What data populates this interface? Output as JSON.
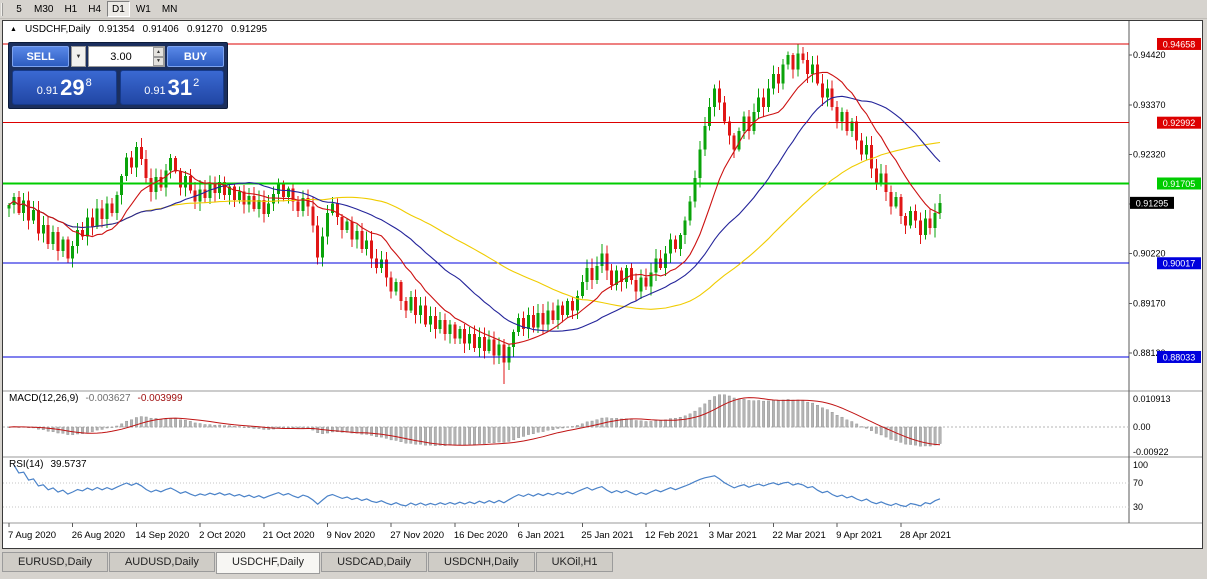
{
  "toolbar": {
    "periods": [
      "5",
      "M30",
      "H1",
      "H4",
      "D1",
      "W1",
      "MN"
    ],
    "active": "D1"
  },
  "icons": {
    "collapse": "▲",
    "dropdown": "▼",
    "spin_up": "▲",
    "spin_down": "▼"
  },
  "chart": {
    "symbol_title": "USDCHF,Daily",
    "ohlc": {
      "open": "0.91354",
      "high": "0.91406",
      "low": "0.91270",
      "close": "0.91295"
    },
    "trade_panel": {
      "sell_label": "SELL",
      "buy_label": "BUY",
      "volume": "3.00",
      "bid": {
        "prefix": "0.91",
        "big": "29",
        "sup": "8"
      },
      "ask": {
        "prefix": "0.91",
        "big": "31",
        "sup": "2"
      }
    },
    "macd_title": "MACD(12,26,9)",
    "macd_value_main": "-0.003627",
    "macd_value_signal": "-0.003999",
    "rsi_title": "RSI(14)",
    "rsi_value": "39.5737"
  },
  "chart_data": {
    "type": "candlestick",
    "symbol": "USDCHF",
    "timeframe": "Daily",
    "colors": {
      "up": "#0aa30a",
      "down": "#e01616"
    },
    "price_range": {
      "top": 0.94848,
      "bottom": 0.87313
    },
    "axis_ticks": [
      0.9442,
      0.9337,
      0.9232,
      0.9127,
      0.9022,
      0.8917,
      0.8812
    ],
    "current_price": 0.91295,
    "horizontal_lines": [
      {
        "price": 0.94658,
        "label": "0.94658",
        "color": "#dd0000",
        "width": 1
      },
      {
        "price": 0.92992,
        "label": "0.92992",
        "color": "#dd0000",
        "width": 1
      },
      {
        "price": 0.91705,
        "label": "0.91705",
        "color": "#00cc00",
        "width": 2
      },
      {
        "price": 0.90017,
        "label": "0.90017",
        "color": "#0000dd",
        "width": 1
      },
      {
        "price": 0.88033,
        "label": "0.88033",
        "color": "#0000dd",
        "width": 1
      }
    ],
    "moving_averages": [
      {
        "period": 55,
        "color": "#f0cc00"
      },
      {
        "period": 28,
        "color": "#24249a"
      },
      {
        "period": 12,
        "color": "#cc1111"
      }
    ],
    "x_labels": [
      "7 Aug 2020",
      "26 Aug 2020",
      "14 Sep 2020",
      "2 Oct 2020",
      "21 Oct 2020",
      "9 Nov 2020",
      "27 Nov 2020",
      "16 Dec 2020",
      "6 Jan 2021",
      "25 Jan 2021",
      "12 Feb 2021",
      "3 Mar 2021",
      "22 Mar 2021",
      "9 Apr 2021",
      "28 Apr 2021"
    ],
    "candles_per_label": 13,
    "first_open": 0.9118,
    "closes": [
      0.9125,
      0.9142,
      0.9108,
      0.9135,
      0.9092,
      0.9114,
      0.9065,
      0.9083,
      0.9042,
      0.9068,
      0.9028,
      0.9052,
      0.9012,
      0.9038,
      0.9072,
      0.9058,
      0.9098,
      0.9078,
      0.9118,
      0.9095,
      0.9128,
      0.9108,
      0.9146,
      0.9186,
      0.9226,
      0.9204,
      0.9248,
      0.9222,
      0.9182,
      0.9152,
      0.9184,
      0.9162,
      0.9198,
      0.9224,
      0.9196,
      0.9162,
      0.9186,
      0.9156,
      0.9132,
      0.9158,
      0.914,
      0.9168,
      0.915,
      0.9174,
      0.9146,
      0.9164,
      0.9136,
      0.9154,
      0.9126,
      0.9144,
      0.9116,
      0.9136,
      0.9106,
      0.9128,
      0.9148,
      0.9168,
      0.9142,
      0.916,
      0.9132,
      0.9112,
      0.914,
      0.9122,
      0.9082,
      0.9014,
      0.9058,
      0.9108,
      0.9128,
      0.91,
      0.9072,
      0.909,
      0.9052,
      0.907,
      0.9032,
      0.905,
      0.9012,
      0.8992,
      0.901,
      0.8972,
      0.8942,
      0.8962,
      0.8922,
      0.8902,
      0.893,
      0.8892,
      0.8912,
      0.8872,
      0.889,
      0.8862,
      0.8882,
      0.8852,
      0.8872,
      0.8842,
      0.8862,
      0.8832,
      0.8852,
      0.8822,
      0.8846,
      0.8816,
      0.884,
      0.8806,
      0.883,
      0.8792,
      0.8824,
      0.8856,
      0.8886,
      0.8862,
      0.8892,
      0.8866,
      0.8896,
      0.8872,
      0.8902,
      0.8882,
      0.8912,
      0.8892,
      0.8922,
      0.8902,
      0.8932,
      0.8962,
      0.8992,
      0.8966,
      0.8996,
      0.9022,
      0.8986,
      0.8956,
      0.8986,
      0.8962,
      0.8992,
      0.8966,
      0.8942,
      0.8972,
      0.8952,
      0.8982,
      0.9012,
      0.8992,
      0.9022,
      0.9052,
      0.9032,
      0.9062,
      0.9092,
      0.9132,
      0.9182,
      0.9242,
      0.9292,
      0.9332,
      0.9372,
      0.9342,
      0.9302,
      0.9272,
      0.9242,
      0.9282,
      0.9312,
      0.9282,
      0.9322,
      0.9352,
      0.9332,
      0.9372,
      0.9402,
      0.9382,
      0.9422,
      0.9442,
      0.9412,
      0.9446,
      0.9432,
      0.9402,
      0.9422,
      0.9382,
      0.9352,
      0.9372,
      0.9332,
      0.9302,
      0.9322,
      0.9282,
      0.9302,
      0.9262,
      0.9232,
      0.9252,
      0.9202,
      0.9172,
      0.9192,
      0.9152,
      0.9122,
      0.9142,
      0.9102,
      0.9082,
      0.9112,
      0.9092,
      0.9062,
      0.9096,
      0.9076,
      0.9108,
      0.91295
    ],
    "special_wicks": {
      "26": {
        "high": 0.9258
      },
      "63": {
        "low": 0.8999
      },
      "101": {
        "low": 0.8746
      },
      "121": {
        "high": 0.9042
      },
      "144": {
        "high": 0.938
      },
      "161": {
        "high": 0.94658
      }
    },
    "indicators": {
      "macd": {
        "params": [
          12,
          26,
          9
        ],
        "values": [
          -0.003627,
          -0.003999
        ],
        "axis_labels": [
          "0.010913",
          "0.00",
          "-0.00922"
        ]
      },
      "rsi": {
        "period": 14,
        "value": 39.5737,
        "levels": [
          70,
          30
        ],
        "axis_labels": [
          100,
          70,
          30
        ]
      }
    }
  },
  "tabs": {
    "items": [
      "EURUSD,Daily",
      "AUDUSD,Daily",
      "USDCHF,Daily",
      "USDCAD,Daily",
      "USDCNH,Daily",
      "UKOil,H1"
    ],
    "active_index": 2
  }
}
